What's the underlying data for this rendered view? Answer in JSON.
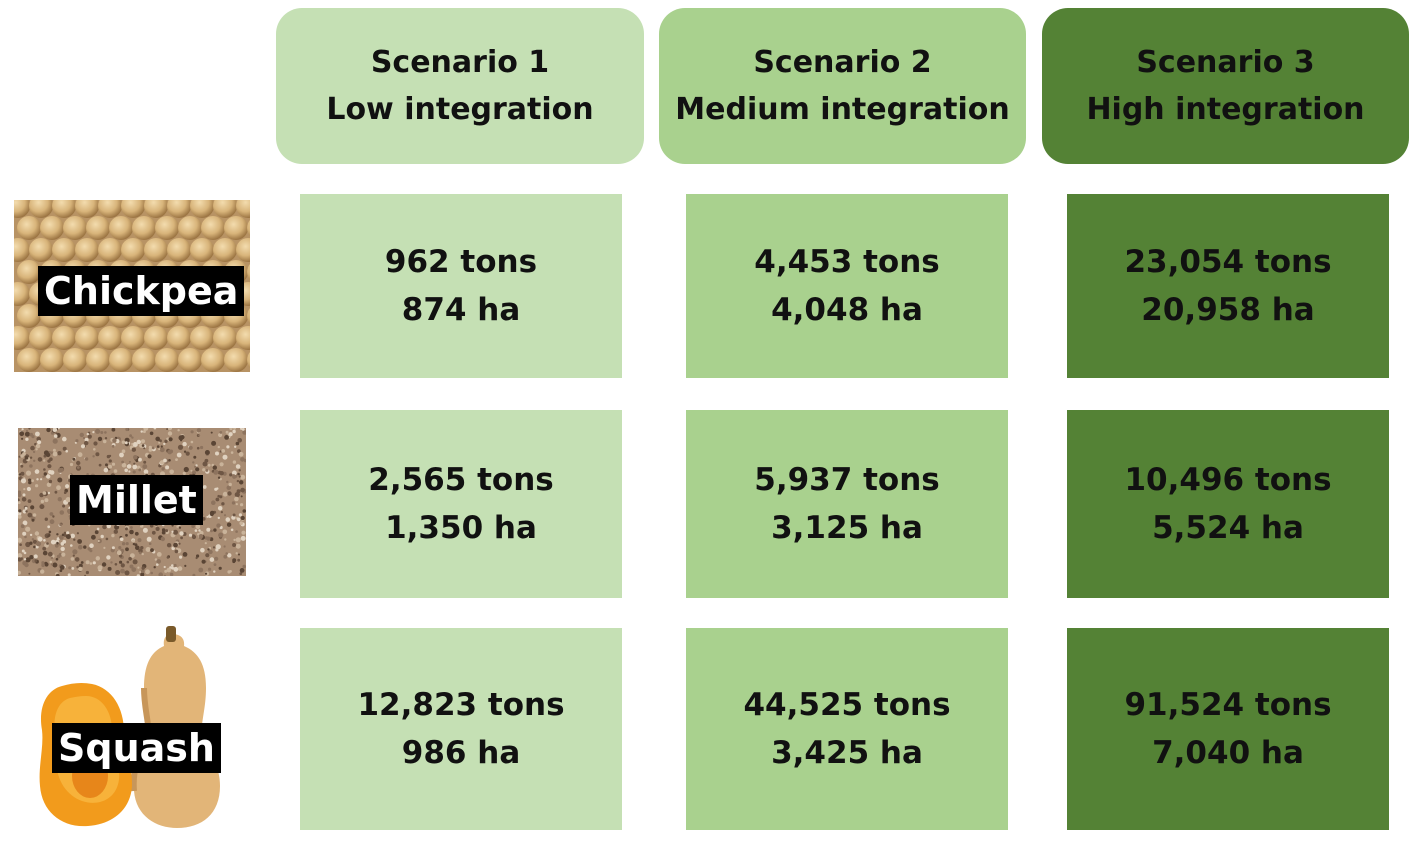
{
  "scenarios": [
    {
      "title": "Scenario 1",
      "subtitle": "Low integration",
      "color": "#c5e0b4"
    },
    {
      "title": "Scenario 2",
      "subtitle": "Medium integration",
      "color": "#a9d18e"
    },
    {
      "title": "Scenario 3",
      "subtitle": "High integration",
      "color": "#548235"
    }
  ],
  "crops": [
    {
      "name": "Chickpea",
      "image": "chickpea-image",
      "values": [
        {
          "tons": "962 tons",
          "ha": "874 ha"
        },
        {
          "tons": "4,453 tons",
          "ha": "4,048 ha"
        },
        {
          "tons": "23,054 tons",
          "ha": "20,958 ha"
        }
      ]
    },
    {
      "name": "Millet",
      "image": "millet-image",
      "values": [
        {
          "tons": "2,565 tons",
          "ha": "1,350 ha"
        },
        {
          "tons": "5,937 tons",
          "ha": "3,125 ha"
        },
        {
          "tons": "10,496 tons",
          "ha": "5,524 ha"
        }
      ]
    },
    {
      "name": "Squash",
      "image": "squash-image",
      "values": [
        {
          "tons": "12,823 tons",
          "ha": "986 ha"
        },
        {
          "tons": "44,525 tons",
          "ha": "3,425 ha"
        },
        {
          "tons": "91,524 tons",
          "ha": "7,040 ha"
        }
      ]
    }
  ]
}
